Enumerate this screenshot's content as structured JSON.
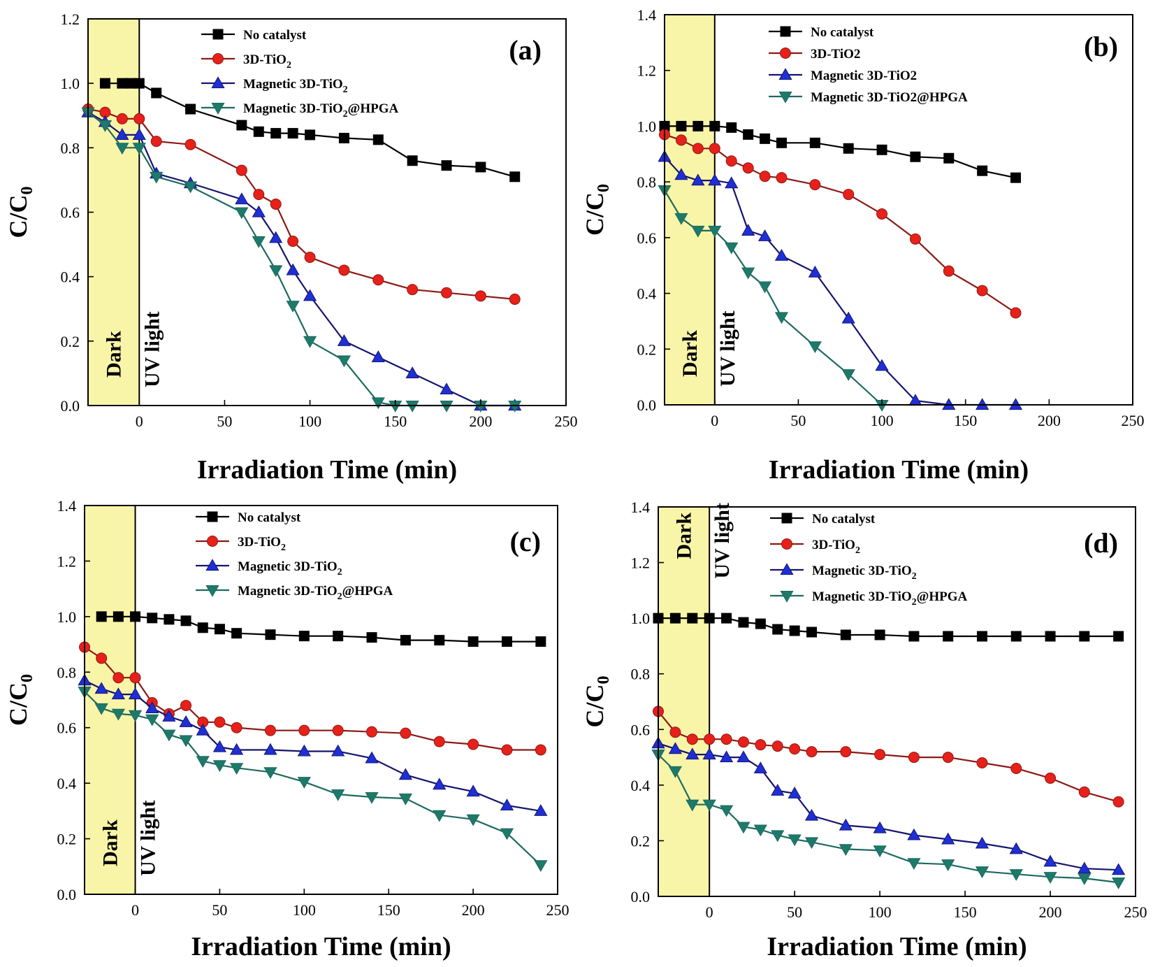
{
  "figure": {
    "region_fill": "#f9f5a8",
    "divider_color": "#000000"
  },
  "chart_data": [
    {
      "type": "line",
      "panel_label": "(a)",
      "title": "",
      "xlabel": "Irradiation Time (min)",
      "ylabel_main": "C/C",
      "ylabel_sub": "0",
      "xlim": [
        -30,
        250
      ],
      "ylim": [
        0,
        1.2
      ],
      "xticks": [
        0,
        50,
        100,
        150,
        200,
        250
      ],
      "yticks": [
        0.0,
        0.2,
        0.4,
        0.6,
        0.8,
        1.0,
        1.2
      ],
      "ytick_labels": [
        "0.0",
        "0.2",
        "0.4",
        "0.6",
        "0.8",
        "1.0",
        "1.2"
      ],
      "dark_region": [
        -30,
        0
      ],
      "dark_label": "Dark",
      "light_label": "UV light",
      "light_label_pos": "bottom",
      "series": [
        {
          "name": "No catalyst",
          "name_main": "No catalyst",
          "name_sub": "",
          "name_tail": "",
          "marker": "square",
          "color": "#000000",
          "line_color": "#000000",
          "x": [
            -20,
            -10,
            -5,
            0,
            10,
            30,
            60,
            70,
            80,
            90,
            100,
            120,
            140,
            160,
            180,
            200,
            220
          ],
          "y": [
            1.0,
            1.0,
            1.0,
            1.0,
            0.97,
            0.92,
            0.87,
            0.85,
            0.845,
            0.845,
            0.84,
            0.83,
            0.825,
            0.76,
            0.745,
            0.74,
            0.71
          ]
        },
        {
          "name": "3D-TiO2",
          "name_main": "3D-TiO",
          "name_sub": "2",
          "name_tail": "",
          "marker": "circle",
          "color": "#e8201a",
          "line_color": "#8b1a14",
          "x": [
            -30,
            -20,
            -10,
            0,
            10,
            30,
            60,
            70,
            80,
            90,
            100,
            120,
            140,
            160,
            180,
            200,
            220
          ],
          "y": [
            0.92,
            0.91,
            0.89,
            0.89,
            0.82,
            0.81,
            0.73,
            0.655,
            0.625,
            0.51,
            0.46,
            0.42,
            0.39,
            0.36,
            0.35,
            0.34,
            0.33
          ]
        },
        {
          "name": "Magnetic 3D-TiO2",
          "name_main": "Magnetic 3D-TiO",
          "name_sub": "2",
          "name_tail": "",
          "marker": "triangle-up",
          "color": "#1f2fd6",
          "line_color": "#14146e",
          "x": [
            -30,
            -20,
            -10,
            0,
            10,
            30,
            60,
            70,
            80,
            90,
            100,
            120,
            140,
            160,
            180,
            200,
            220
          ],
          "y": [
            0.91,
            0.88,
            0.84,
            0.84,
            0.72,
            0.69,
            0.64,
            0.6,
            0.52,
            0.42,
            0.34,
            0.2,
            0.15,
            0.1,
            0.05,
            0.0,
            0.0
          ]
        },
        {
          "name": "Magnetic 3D-TiO2@HPGA",
          "name_main": "Magnetic 3D-TiO",
          "name_sub": "2",
          "name_tail": "@HPGA",
          "marker": "triangle-down",
          "color": "#1d7a6a",
          "line_color": "#1d6a5e",
          "x": [
            -30,
            -20,
            -10,
            0,
            10,
            30,
            60,
            70,
            80,
            90,
            100,
            120,
            140,
            150,
            160,
            180,
            200,
            220
          ],
          "y": [
            0.91,
            0.87,
            0.8,
            0.8,
            0.71,
            0.68,
            0.6,
            0.51,
            0.42,
            0.31,
            0.2,
            0.14,
            0.01,
            0.0,
            0.0,
            0.0,
            0.0,
            0.0
          ]
        }
      ]
    },
    {
      "type": "line",
      "panel_label": "(b)",
      "title": "",
      "xlabel": "Irradiation Time (min)",
      "ylabel_main": "C/C",
      "ylabel_sub": "0",
      "xlim": [
        -30,
        250
      ],
      "ylim": [
        0,
        1.4
      ],
      "xticks": [
        0,
        50,
        100,
        150,
        200,
        250
      ],
      "yticks": [
        0.0,
        0.2,
        0.4,
        0.6,
        0.8,
        1.0,
        1.2,
        1.4
      ],
      "ytick_labels": [
        "0.0",
        "0.2",
        "0.4",
        "0.6",
        "0.8",
        "1.0",
        "1.2",
        "1.4"
      ],
      "dark_region": [
        -30,
        0
      ],
      "dark_label": "Dark",
      "light_label": "UV light",
      "light_label_pos": "bottom",
      "series": [
        {
          "name": "No catalyst",
          "name_main": "No catalyst",
          "name_sub": "",
          "name_tail": "",
          "marker": "square",
          "color": "#000000",
          "line_color": "#000000",
          "x": [
            -30,
            -20,
            -10,
            0,
            10,
            20,
            30,
            40,
            60,
            80,
            100,
            120,
            140,
            160,
            180
          ],
          "y": [
            1.0,
            1.0,
            1.0,
            1.0,
            0.995,
            0.97,
            0.955,
            0.94,
            0.94,
            0.92,
            0.915,
            0.89,
            0.885,
            0.84,
            0.815
          ]
        },
        {
          "name": "3D-TiO2",
          "name_main": "3D-TiO2",
          "name_sub": "",
          "name_tail": "",
          "marker": "circle",
          "color": "#e8201a",
          "line_color": "#8b1a14",
          "x": [
            -30,
            -20,
            -10,
            0,
            10,
            20,
            30,
            40,
            60,
            80,
            100,
            120,
            140,
            160,
            180
          ],
          "y": [
            0.97,
            0.95,
            0.92,
            0.92,
            0.875,
            0.85,
            0.82,
            0.815,
            0.79,
            0.755,
            0.685,
            0.595,
            0.48,
            0.41,
            0.33
          ]
        },
        {
          "name": "Magnetic 3D-TiO2",
          "name_main": "Magnetic 3D-TiO2",
          "name_sub": "",
          "name_tail": "",
          "marker": "triangle-up",
          "color": "#1f2fd6",
          "line_color": "#14146e",
          "x": [
            -30,
            -20,
            -10,
            0,
            10,
            20,
            30,
            40,
            60,
            80,
            100,
            120,
            140,
            160,
            180
          ],
          "y": [
            0.89,
            0.825,
            0.805,
            0.805,
            0.795,
            0.625,
            0.605,
            0.535,
            0.475,
            0.31,
            0.14,
            0.015,
            0.0,
            0.0,
            0.0
          ]
        },
        {
          "name": "Magnetic 3D-TiO2@HPGA",
          "name_main": "Magnetic 3D-TiO2@HPGA",
          "name_sub": "",
          "name_tail": "",
          "marker": "triangle-down",
          "color": "#1d7a6a",
          "line_color": "#1d6a5e",
          "x": [
            -30,
            -20,
            -10,
            0,
            10,
            20,
            30,
            40,
            60,
            80,
            100
          ],
          "y": [
            0.77,
            0.67,
            0.625,
            0.625,
            0.565,
            0.475,
            0.425,
            0.315,
            0.21,
            0.11,
            0.0
          ]
        }
      ]
    },
    {
      "type": "line",
      "panel_label": "(c)",
      "title": "",
      "xlabel": "Irradiation Time (min)",
      "ylabel_main": "C/C",
      "ylabel_sub": "0",
      "xlim": [
        -30,
        250
      ],
      "ylim": [
        0,
        1.4
      ],
      "xticks": [
        0,
        50,
        100,
        150,
        200,
        250
      ],
      "yticks": [
        0.0,
        0.2,
        0.4,
        0.6,
        0.8,
        1.0,
        1.2,
        1.4
      ],
      "ytick_labels": [
        "0.0",
        "0.2",
        "0.4",
        "0.6",
        "0.8",
        "1.0",
        "1.2",
        "1.4"
      ],
      "dark_region": [
        -30,
        0
      ],
      "dark_label": "Dark",
      "light_label": "UV light",
      "light_label_pos": "bottom",
      "series": [
        {
          "name": "No catalyst",
          "name_main": "No catalyst",
          "name_sub": "",
          "name_tail": "",
          "marker": "square",
          "color": "#000000",
          "line_color": "#000000",
          "x": [
            -20,
            -10,
            0,
            10,
            20,
            30,
            40,
            50,
            60,
            80,
            100,
            120,
            140,
            160,
            180,
            200,
            220,
            240
          ],
          "y": [
            1.0,
            1.0,
            1.0,
            0.995,
            0.99,
            0.985,
            0.96,
            0.955,
            0.94,
            0.935,
            0.93,
            0.93,
            0.925,
            0.915,
            0.915,
            0.91,
            0.91,
            0.91
          ]
        },
        {
          "name": "3D-TiO2",
          "name_main": "3D-TiO",
          "name_sub": "2",
          "name_tail": "",
          "marker": "circle",
          "color": "#e8201a",
          "line_color": "#8b1a14",
          "x": [
            -30,
            -20,
            -10,
            0,
            10,
            20,
            30,
            40,
            50,
            60,
            80,
            100,
            120,
            140,
            160,
            180,
            200,
            220,
            240
          ],
          "y": [
            0.89,
            0.85,
            0.78,
            0.78,
            0.69,
            0.65,
            0.68,
            0.62,
            0.62,
            0.6,
            0.59,
            0.59,
            0.59,
            0.585,
            0.58,
            0.55,
            0.54,
            0.52,
            0.52
          ]
        },
        {
          "name": "Magnetic 3D-TiO2",
          "name_main": "Magnetic 3D-TiO",
          "name_sub": "2",
          "name_tail": "",
          "marker": "triangle-up",
          "color": "#1f2fd6",
          "line_color": "#14146e",
          "x": [
            -30,
            -20,
            -10,
            0,
            10,
            20,
            30,
            40,
            50,
            60,
            80,
            100,
            120,
            140,
            160,
            180,
            200,
            220,
            240
          ],
          "y": [
            0.77,
            0.74,
            0.72,
            0.72,
            0.67,
            0.64,
            0.62,
            0.59,
            0.53,
            0.52,
            0.52,
            0.515,
            0.515,
            0.49,
            0.43,
            0.395,
            0.37,
            0.32,
            0.3
          ]
        },
        {
          "name": "Magnetic 3D-TiO2@HPGA",
          "name_main": "Magnetic 3D-TiO",
          "name_sub": "2",
          "name_tail": "@HPGA",
          "marker": "triangle-down",
          "color": "#1d7a6a",
          "line_color": "#1d6a5e",
          "x": [
            -30,
            -20,
            -10,
            0,
            10,
            20,
            30,
            40,
            50,
            60,
            80,
            100,
            120,
            140,
            160,
            180,
            200,
            220,
            240
          ],
          "y": [
            0.73,
            0.67,
            0.65,
            0.645,
            0.63,
            0.575,
            0.555,
            0.48,
            0.465,
            0.455,
            0.44,
            0.405,
            0.36,
            0.35,
            0.345,
            0.285,
            0.27,
            0.22,
            0.105
          ]
        }
      ]
    },
    {
      "type": "line",
      "panel_label": "(d)",
      "title": "",
      "xlabel": "Irradiation Time (min)",
      "ylabel_main": "C/C",
      "ylabel_sub": "0",
      "xlim": [
        -30,
        250
      ],
      "ylim": [
        0,
        1.4
      ],
      "xticks": [
        0,
        50,
        100,
        150,
        200,
        250
      ],
      "yticks": [
        0.0,
        0.2,
        0.4,
        0.6,
        0.8,
        1.0,
        1.2,
        1.4
      ],
      "ytick_labels": [
        "0.0",
        "0.2",
        "0.4",
        "0.6",
        "0.8",
        "1.0",
        "1.2",
        "1.4"
      ],
      "dark_region": [
        -30,
        0
      ],
      "dark_label": "Dark",
      "light_label": "UV light",
      "light_label_pos": "top",
      "series": [
        {
          "name": "No catalyst",
          "name_main": "No catalyst",
          "name_sub": "",
          "name_tail": "",
          "marker": "square",
          "color": "#000000",
          "line_color": "#000000",
          "x": [
            -30,
            -20,
            -10,
            0,
            10,
            20,
            30,
            40,
            50,
            60,
            80,
            100,
            120,
            140,
            160,
            180,
            200,
            220,
            240
          ],
          "y": [
            1.0,
            1.0,
            1.0,
            1.0,
            1.0,
            0.985,
            0.98,
            0.96,
            0.955,
            0.95,
            0.94,
            0.94,
            0.935,
            0.935,
            0.935,
            0.935,
            0.935,
            0.935,
            0.935
          ]
        },
        {
          "name": "3D-TiO2",
          "name_main": "3D-TiO",
          "name_sub": "2",
          "name_tail": "",
          "marker": "circle",
          "color": "#e8201a",
          "line_color": "#8b1a14",
          "x": [
            -30,
            -20,
            -10,
            0,
            10,
            20,
            30,
            40,
            50,
            60,
            80,
            100,
            120,
            140,
            160,
            180,
            200,
            220,
            240
          ],
          "y": [
            0.665,
            0.59,
            0.565,
            0.565,
            0.565,
            0.555,
            0.545,
            0.54,
            0.53,
            0.52,
            0.52,
            0.51,
            0.5,
            0.5,
            0.48,
            0.46,
            0.425,
            0.375,
            0.34
          ]
        },
        {
          "name": "Magnetic 3D-TiO2",
          "name_main": "Magnetic 3D-TiO",
          "name_sub": "2",
          "name_tail": "",
          "marker": "triangle-up",
          "color": "#1f2fd6",
          "line_color": "#14146e",
          "x": [
            -30,
            -20,
            -10,
            0,
            10,
            20,
            30,
            40,
            50,
            60,
            80,
            100,
            120,
            140,
            160,
            180,
            200,
            220,
            240
          ],
          "y": [
            0.55,
            0.53,
            0.51,
            0.51,
            0.5,
            0.5,
            0.46,
            0.38,
            0.37,
            0.29,
            0.255,
            0.245,
            0.22,
            0.205,
            0.19,
            0.17,
            0.125,
            0.1,
            0.095
          ]
        },
        {
          "name": "Magnetic 3D-TiO2@HPGA",
          "name_main": "Magnetic 3D-TiO",
          "name_sub": "2",
          "name_tail": "@HPGA",
          "marker": "triangle-down",
          "color": "#1d7a6a",
          "line_color": "#1d6a5e",
          "x": [
            -30,
            -20,
            -10,
            0,
            10,
            20,
            30,
            40,
            50,
            60,
            80,
            100,
            120,
            140,
            160,
            180,
            200,
            220,
            240
          ],
          "y": [
            0.51,
            0.45,
            0.33,
            0.33,
            0.31,
            0.25,
            0.24,
            0.22,
            0.205,
            0.195,
            0.17,
            0.165,
            0.12,
            0.115,
            0.09,
            0.08,
            0.07,
            0.065,
            0.05
          ]
        }
      ]
    }
  ]
}
